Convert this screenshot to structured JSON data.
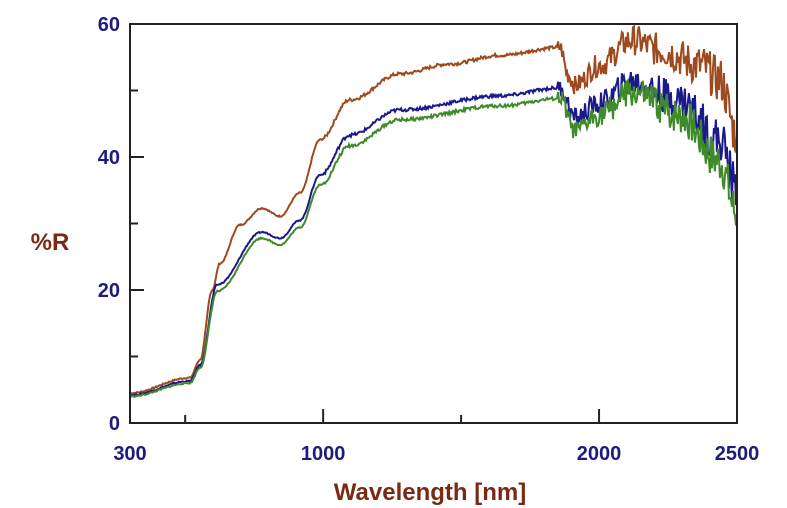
{
  "chart_data": {
    "type": "line",
    "title": "",
    "xlabel": "Wavelength [nm]",
    "ylabel": "%R",
    "xlim": [
      300,
      2500
    ],
    "ylim": [
      0,
      60
    ],
    "x_ticks": [
      300,
      500,
      1000,
      1500,
      2000,
      2500
    ],
    "x_tick_labels": [
      "300",
      "1000",
      "2000",
      "2500"
    ],
    "x_tick_label_values": [
      300,
      1000,
      2000,
      2500
    ],
    "y_ticks": [
      0,
      10,
      20,
      30,
      40,
      50,
      60
    ],
    "y_tick_labels": [
      "0",
      "20",
      "40",
      "60"
    ],
    "y_tick_label_values": [
      0,
      20,
      40,
      60
    ],
    "grid": false,
    "legend": "none",
    "colors": {
      "tick_labels": "#1c1c7a",
      "axis_titles": "#7a2a14"
    },
    "series": [
      {
        "name": "brown",
        "color": "#9c4a1e",
        "x": [
          300,
          517,
          554,
          598,
          626,
          699,
          778,
          844,
          916,
          989,
          1097,
          1279,
          1460,
          1641,
          1859,
          1888,
          1913,
          2000,
          2119,
          2221,
          2366,
          2438,
          2500
        ],
        "y": [
          4.5,
          6.8,
          9.5,
          20,
          24,
          29.8,
          32.3,
          31.1,
          34.6,
          42.6,
          48.6,
          52.5,
          54,
          55.3,
          56.5,
          52.3,
          50.8,
          53.8,
          57.6,
          56.1,
          53.8,
          51.6,
          43.3
        ]
      },
      {
        "name": "blue",
        "color": "#1a1a8c",
        "x": [
          300,
          517,
          554,
          616,
          778,
          844,
          916,
          989,
          1097,
          1279,
          1641,
          1859,
          1913,
          2000,
          2119,
          2293,
          2438,
          2500
        ],
        "y": [
          4.2,
          6.3,
          8.7,
          20.8,
          28.7,
          27.8,
          30.5,
          37.3,
          43.3,
          47.1,
          49.2,
          50.4,
          45.9,
          48,
          51.3,
          48.6,
          42.6,
          35
        ]
      },
      {
        "name": "green",
        "color": "#3f8a2a",
        "x": [
          300,
          517,
          554,
          616,
          778,
          844,
          916,
          989,
          1097,
          1279,
          1641,
          1859,
          1913,
          2000,
          2119,
          2293,
          2438,
          2500
        ],
        "y": [
          4.0,
          6.0,
          8.3,
          19.8,
          27.8,
          26.8,
          29.4,
          35.8,
          41.7,
          45.6,
          47.7,
          48.8,
          43.8,
          46.4,
          49.6,
          46.3,
          39.5,
          31.5
        ]
      }
    ]
  }
}
